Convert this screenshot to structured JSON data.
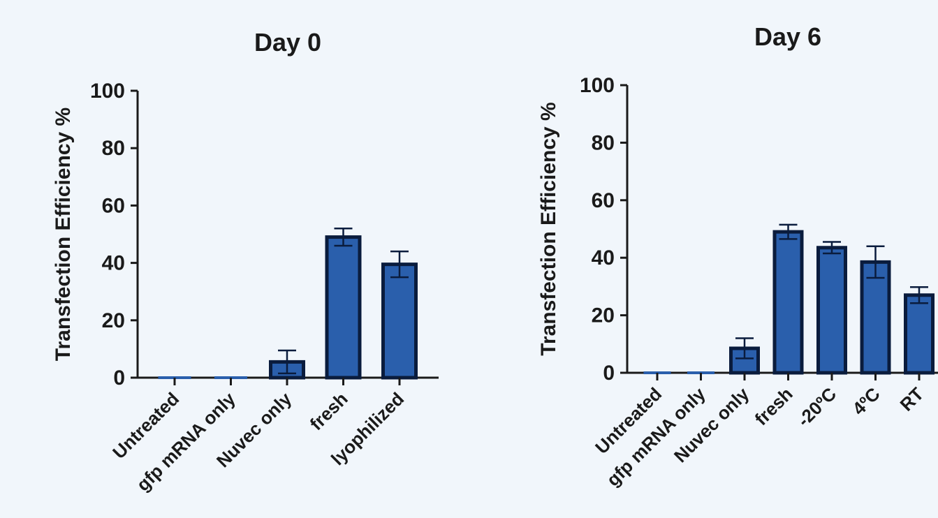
{
  "chart_data": [
    {
      "type": "bar",
      "title": "Day 0",
      "xlabel": "",
      "ylabel": "Transfection Efficiency %",
      "ylim": [
        0,
        100
      ],
      "yticks": [
        0,
        20,
        40,
        60,
        80,
        100
      ],
      "grid": false,
      "categories": [
        "Untreated",
        "gfp mRNA only",
        "Nuvec only",
        "fresh",
        "lyophilized"
      ],
      "values": [
        0,
        0,
        5.5,
        49,
        39.5
      ],
      "errors": [
        0,
        0,
        4,
        3,
        4.5
      ],
      "colors": {
        "bar": "#2a5fac",
        "edge": "#0a1c3d"
      }
    },
    {
      "type": "bar",
      "title": "Day 6",
      "xlabel": "",
      "ylabel": "Transfection Efficiency %",
      "ylim": [
        0,
        100
      ],
      "yticks": [
        0,
        20,
        40,
        60,
        80,
        100
      ],
      "grid": false,
      "categories": [
        "Untreated",
        "gfp mRNA only",
        "Nuvec only",
        "fresh",
        "-20ºC",
        "4ºC",
        "RT"
      ],
      "values": [
        0,
        0,
        8.5,
        49,
        43.5,
        38.5,
        27
      ],
      "errors": [
        0,
        0,
        3.5,
        2.5,
        2,
        5.5,
        2.8
      ],
      "colors": {
        "bar": "#2a5fac",
        "edge": "#0a1c3d"
      }
    }
  ]
}
